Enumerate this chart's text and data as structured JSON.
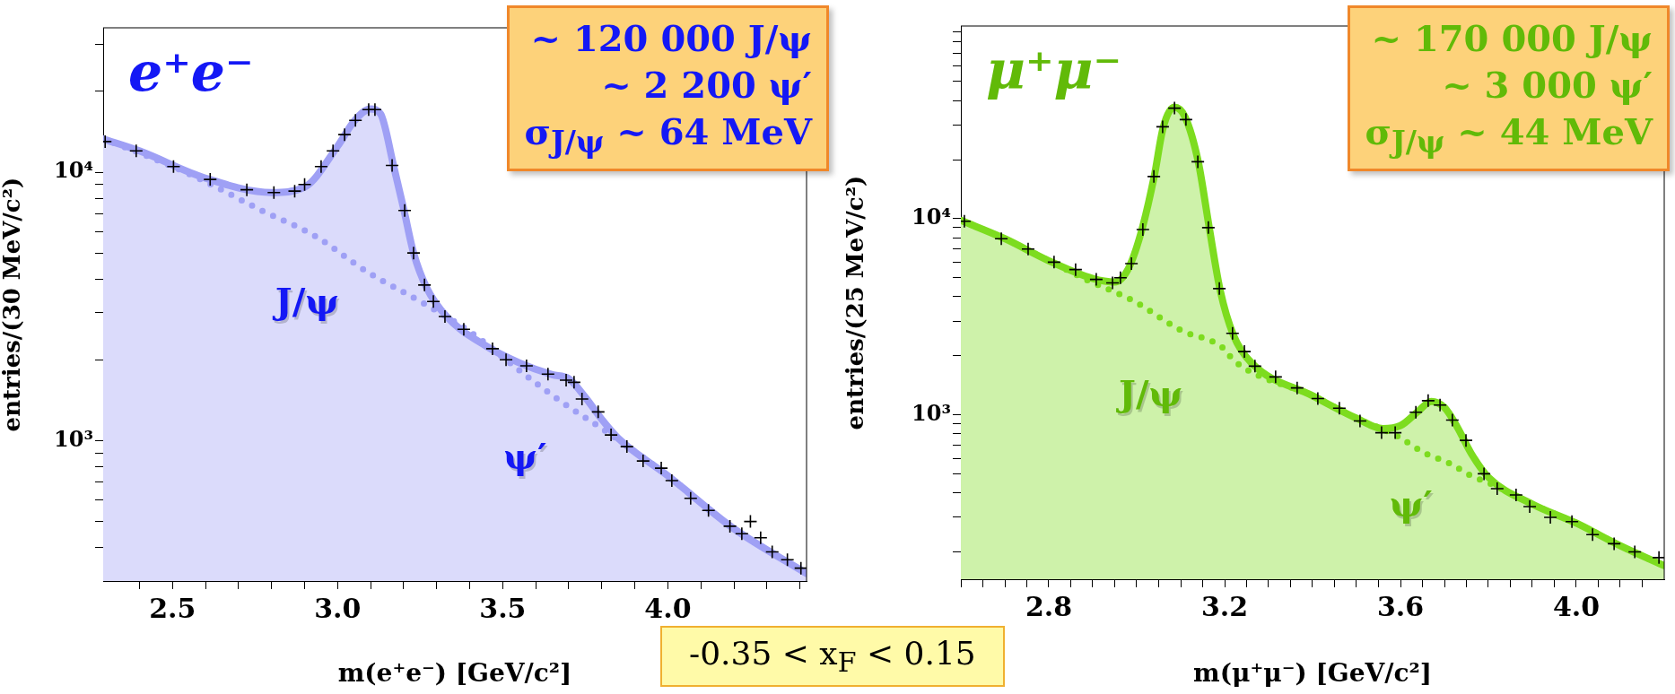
{
  "chart_data": [
    {
      "type": "line",
      "title": "e⁺e⁻",
      "xlabel": "m(e⁺e⁻) [GeV/c²]",
      "ylabel": "entries/(30 MeV/c²)",
      "log": "y",
      "grid": false,
      "legend": false,
      "xlim": [
        2.29,
        4.42
      ],
      "ylim": [
        300,
        34500
      ],
      "xticks": [
        {
          "value": 2.4,
          "label": null
        },
        {
          "value": 2.5,
          "label": "2.5"
        },
        {
          "value": 2.6,
          "label": null
        },
        {
          "value": 2.7,
          "label": null
        },
        {
          "value": 2.8,
          "label": null
        },
        {
          "value": 2.9,
          "label": null
        },
        {
          "value": 3.0,
          "label": "3.0"
        },
        {
          "value": 3.1,
          "label": null
        },
        {
          "value": 3.2,
          "label": null
        },
        {
          "value": 3.3,
          "label": null
        },
        {
          "value": 3.4,
          "label": null
        },
        {
          "value": 3.5,
          "label": "3.5"
        },
        {
          "value": 3.6,
          "label": null
        },
        {
          "value": 3.7,
          "label": null
        },
        {
          "value": 3.8,
          "label": null
        },
        {
          "value": 3.9,
          "label": null
        },
        {
          "value": 4.0,
          "label": "4.0"
        },
        {
          "value": 4.1,
          "label": null
        },
        {
          "value": 4.2,
          "label": null
        },
        {
          "value": 4.3,
          "label": null
        },
        {
          "value": 4.4,
          "label": null
        }
      ],
      "yticks": [
        {
          "value": 400,
          "label": null
        },
        {
          "value": 500,
          "label": null
        },
        {
          "value": 600,
          "label": null
        },
        {
          "value": 700,
          "label": null
        },
        {
          "value": 800,
          "label": null
        },
        {
          "value": 900,
          "label": null
        },
        {
          "value": 1000,
          "label": "10³"
        },
        {
          "value": 2000,
          "label": null
        },
        {
          "value": 3000,
          "label": null
        },
        {
          "value": 4000,
          "label": null
        },
        {
          "value": 5000,
          "label": null
        },
        {
          "value": 6000,
          "label": null
        },
        {
          "value": 7000,
          "label": null
        },
        {
          "value": 8000,
          "label": null
        },
        {
          "value": 9000,
          "label": null
        },
        {
          "value": 10000,
          "label": "10⁴"
        },
        {
          "value": 20000,
          "label": null
        },
        {
          "value": 30000,
          "label": null
        }
      ],
      "annotations": [
        "~ 120 000 J/ψ",
        "~ 2 200 ψ′",
        "σ$_{J/ψ}$ ~ 64 MeV",
        "J/ψ",
        "ψ′"
      ],
      "series": [
        {
          "type": "line",
          "line_style": "dotted",
          "color": "#9fa0f5",
          "x": [
            2.29,
            2.4,
            2.57,
            2.77,
            2.93,
            3.09,
            3.26,
            3.4,
            3.57,
            3.68,
            3.8,
            4.0,
            4.2,
            4.42
          ],
          "values": [
            13300,
            11800,
            9600,
            7200,
            5800,
            4250,
            3250,
            2550,
            1750,
            1390,
            1110,
            740,
            470,
            320
          ]
        },
        {
          "type": "area",
          "color": "#9fa0f5",
          "x": [
            2.29,
            2.4,
            2.6,
            2.8,
            2.9,
            3.0,
            3.05,
            3.1,
            3.13,
            3.17,
            3.2,
            3.23,
            3.27,
            3.33,
            3.45,
            3.55,
            3.65,
            3.7,
            3.75,
            3.8,
            3.85,
            4.0,
            4.2,
            4.42
          ],
          "values": [
            13300,
            12000,
            9500,
            8400,
            8800,
            12500,
            15500,
            17200,
            16500,
            10500,
            7300,
            5000,
            3700,
            2900,
            2250,
            1950,
            1760,
            1700,
            1450,
            1200,
            1020,
            740,
            470,
            320
          ]
        },
        {
          "type": "scatter",
          "marker": "cross",
          "color": "#000000",
          "x": [
            2.296,
            2.39,
            2.503,
            2.614,
            2.725,
            2.807,
            2.87,
            2.9,
            2.95,
            2.986,
            3.021,
            3.054,
            3.094,
            3.113,
            3.165,
            3.203,
            3.23,
            3.263,
            3.29,
            3.325,
            3.382,
            3.469,
            3.51,
            3.572,
            3.637,
            3.692,
            3.716,
            3.74,
            3.789,
            3.828,
            3.876,
            3.925,
            3.98,
            4.012,
            4.069,
            4.123,
            4.188,
            4.224,
            4.25,
            4.281,
            4.316,
            4.362,
            4.403
          ],
          "values": [
            13000,
            12000,
            10500,
            9400,
            8600,
            8400,
            8500,
            9000,
            10500,
            12000,
            13800,
            15600,
            17100,
            17100,
            10600,
            7200,
            5000,
            3800,
            3300,
            2900,
            2600,
            2200,
            2000,
            1900,
            1770,
            1680,
            1650,
            1430,
            1280,
            1050,
            950,
            840,
            790,
            710,
            610,
            550,
            480,
            450,
            500,
            435,
            385,
            360,
            335
          ]
        }
      ]
    },
    {
      "type": "line",
      "title": "μ⁺μ⁻",
      "xlabel": "m(μ⁺μ⁻) [GeV/c²]",
      "ylabel": "entries/(25 MeV/c²)",
      "log": "y",
      "grid": false,
      "legend": false,
      "xlim": [
        2.6,
        4.2
      ],
      "ylim": [
        145,
        96000
      ],
      "xticks": [
        {
          "value": 2.6,
          "label": null
        },
        {
          "value": 2.65,
          "label": null
        },
        {
          "value": 2.7,
          "label": null
        },
        {
          "value": 2.75,
          "label": null
        },
        {
          "value": 2.8,
          "label": "2.8"
        },
        {
          "value": 2.85,
          "label": null
        },
        {
          "value": 2.9,
          "label": null
        },
        {
          "value": 2.95,
          "label": null
        },
        {
          "value": 3.0,
          "label": null
        },
        {
          "value": 3.05,
          "label": null
        },
        {
          "value": 3.1,
          "label": null
        },
        {
          "value": 3.15,
          "label": null
        },
        {
          "value": 3.2,
          "label": "3.2"
        },
        {
          "value": 3.25,
          "label": null
        },
        {
          "value": 3.3,
          "label": null
        },
        {
          "value": 3.35,
          "label": null
        },
        {
          "value": 3.4,
          "label": null
        },
        {
          "value": 3.45,
          "label": null
        },
        {
          "value": 3.5,
          "label": null
        },
        {
          "value": 3.55,
          "label": null
        },
        {
          "value": 3.6,
          "label": "3.6"
        },
        {
          "value": 3.65,
          "label": null
        },
        {
          "value": 3.7,
          "label": null
        },
        {
          "value": 3.75,
          "label": null
        },
        {
          "value": 3.8,
          "label": null
        },
        {
          "value": 3.85,
          "label": null
        },
        {
          "value": 3.9,
          "label": null
        },
        {
          "value": 3.95,
          "label": null
        },
        {
          "value": 4.0,
          "label": "4.0"
        },
        {
          "value": 4.05,
          "label": null
        },
        {
          "value": 4.1,
          "label": null
        },
        {
          "value": 4.15,
          "label": null
        }
      ],
      "yticks": [
        {
          "value": 200,
          "label": null
        },
        {
          "value": 300,
          "label": null
        },
        {
          "value": 400,
          "label": null
        },
        {
          "value": 500,
          "label": null
        },
        {
          "value": 600,
          "label": null
        },
        {
          "value": 700,
          "label": null
        },
        {
          "value": 800,
          "label": null
        },
        {
          "value": 900,
          "label": null
        },
        {
          "value": 1000,
          "label": "10³"
        },
        {
          "value": 2000,
          "label": null
        },
        {
          "value": 3000,
          "label": null
        },
        {
          "value": 4000,
          "label": null
        },
        {
          "value": 5000,
          "label": null
        },
        {
          "value": 6000,
          "label": null
        },
        {
          "value": 7000,
          "label": null
        },
        {
          "value": 8000,
          "label": null
        },
        {
          "value": 9000,
          "label": null
        },
        {
          "value": 10000,
          "label": "10⁴"
        },
        {
          "value": 20000,
          "label": null
        },
        {
          "value": 30000,
          "label": null
        },
        {
          "value": 40000,
          "label": null
        },
        {
          "value": 50000,
          "label": null
        },
        {
          "value": 60000,
          "label": null
        },
        {
          "value": 70000,
          "label": null
        },
        {
          "value": 80000,
          "label": null
        },
        {
          "value": 90000,
          "label": null
        }
      ],
      "annotations": [
        "~ 170 000 J/ψ",
        "~ 3 000 ψ′",
        "σ$_{J/ψ}$ ~ 44 MeV",
        "J/ψ",
        "ψ′",
        "-0.35 < x$_{F}$ < 0.15"
      ],
      "series": [
        {
          "type": "line",
          "line_style": "dotted",
          "color": "#7ddc1f",
          "x": [
            2.6,
            2.7,
            2.8,
            2.886,
            2.994,
            3.1,
            3.198,
            3.22,
            3.4,
            3.5,
            3.594,
            3.653,
            3.712,
            3.761,
            3.8,
            3.9,
            4.0,
            4.1,
            4.2
          ],
          "values": [
            9800,
            7900,
            6100,
            4880,
            3790,
            2700,
            2180,
            1900,
            1250,
            960,
            776,
            641,
            565,
            488,
            450,
            350,
            280,
            215,
            170
          ]
        },
        {
          "type": "area",
          "color": "#7ddc1f",
          "x": [
            2.6,
            2.7,
            2.8,
            2.9,
            2.95,
            2.98,
            3.01,
            3.04,
            3.06,
            3.085,
            3.11,
            3.14,
            3.165,
            3.19,
            3.22,
            3.26,
            3.4,
            3.5,
            3.56,
            3.6,
            3.64,
            3.67,
            3.7,
            3.73,
            3.76,
            3.8,
            3.9,
            4.0,
            4.1,
            4.2
          ],
          "values": [
            9800,
            7900,
            6100,
            4950,
            4750,
            5500,
            8500,
            16500,
            29000,
            37000,
            33000,
            19500,
            9000,
            4300,
            2550,
            1850,
            1250,
            960,
            850,
            880,
            1040,
            1170,
            1090,
            860,
            640,
            480,
            350,
            280,
            215,
            170
          ]
        },
        {
          "type": "scatter",
          "marker": "cross",
          "color": "#000000",
          "x": [
            2.608,
            2.692,
            2.753,
            2.812,
            2.861,
            2.908,
            2.945,
            2.963,
            2.988,
            3.014,
            3.039,
            3.059,
            3.086,
            3.112,
            3.139,
            3.163,
            3.188,
            3.218,
            3.245,
            3.269,
            3.316,
            3.365,
            3.412,
            3.461,
            3.508,
            3.557,
            3.588,
            3.635,
            3.663,
            3.69,
            3.718,
            3.749,
            3.79,
            3.82,
            3.863,
            3.894,
            3.941,
            3.99,
            4.037,
            4.086,
            4.133,
            4.188
          ],
          "values": [
            9700,
            7900,
            7000,
            6000,
            5500,
            4900,
            4700,
            5000,
            5900,
            8800,
            16400,
            29400,
            36600,
            32000,
            19500,
            9000,
            4400,
            2600,
            2100,
            1770,
            1560,
            1370,
            1210,
            1080,
            930,
            810,
            810,
            1030,
            1180,
            1120,
            940,
            740,
            500,
            420,
            390,
            340,
            300,
            285,
            245,
            220,
            200,
            187
          ]
        }
      ]
    }
  ]
}
